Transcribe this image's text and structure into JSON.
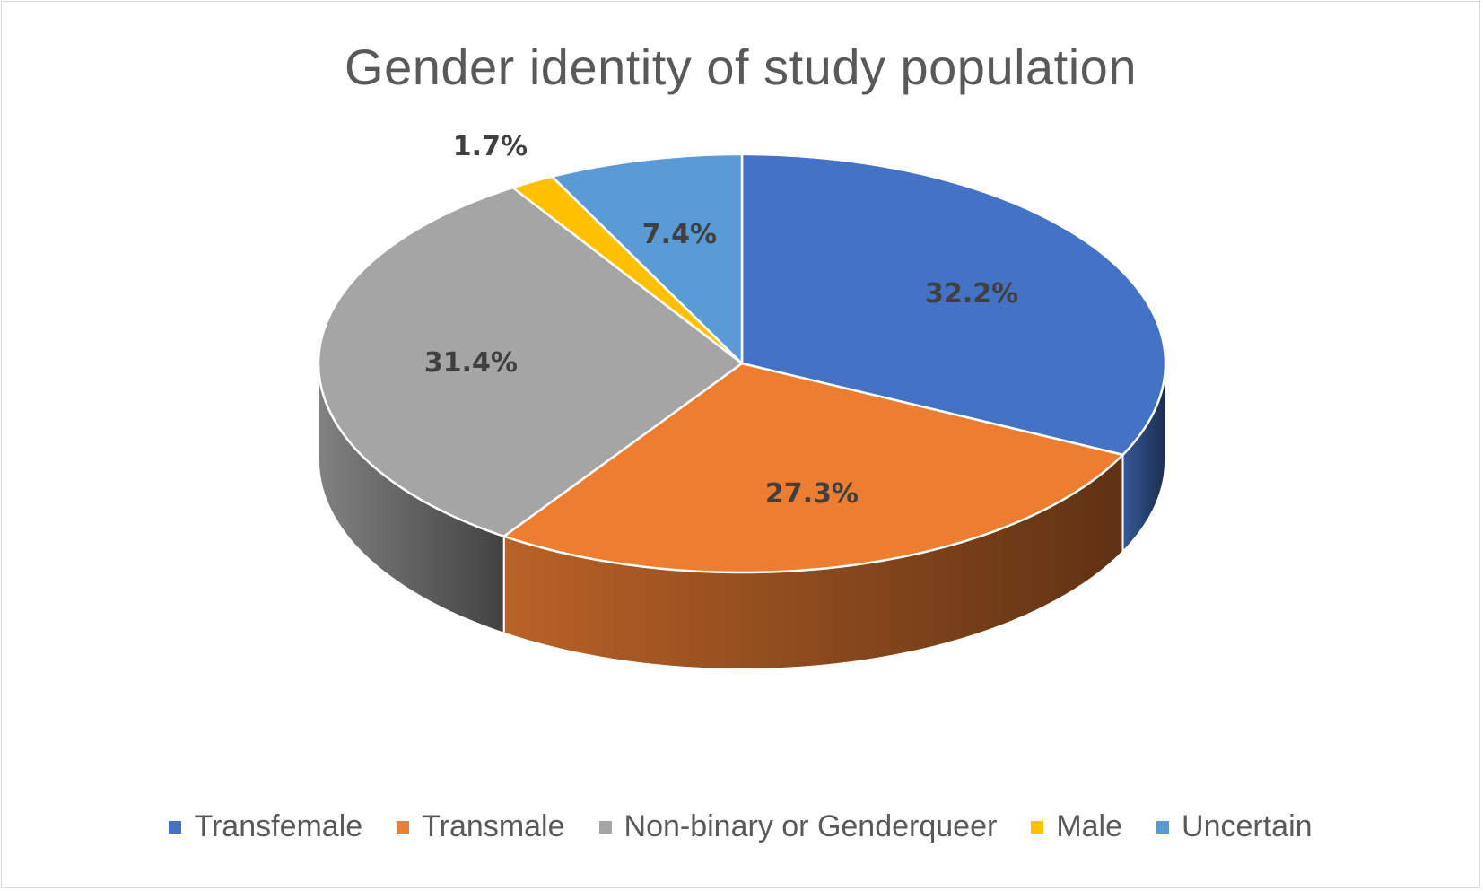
{
  "chart_data": {
    "type": "pie",
    "title": "Gender identity of study population",
    "style": "3d",
    "legend_position": "bottom",
    "slices": [
      {
        "label": "Transfemale",
        "value": 32.2,
        "display": "32.2%",
        "color": "#4472C4"
      },
      {
        "label": "Transmale",
        "value": 27.3,
        "display": "27.3%",
        "color": "#ED7D31"
      },
      {
        "label": "Non-binary or Genderqueer",
        "value": 31.4,
        "display": "31.4%",
        "color": "#A5A5A5"
      },
      {
        "label": "Male",
        "value": 1.7,
        "display": "1.7%",
        "color": "#FFC000"
      },
      {
        "label": "Uncertain",
        "value": 7.4,
        "display": "7.4%",
        "color": "#5B9BD5"
      }
    ]
  }
}
